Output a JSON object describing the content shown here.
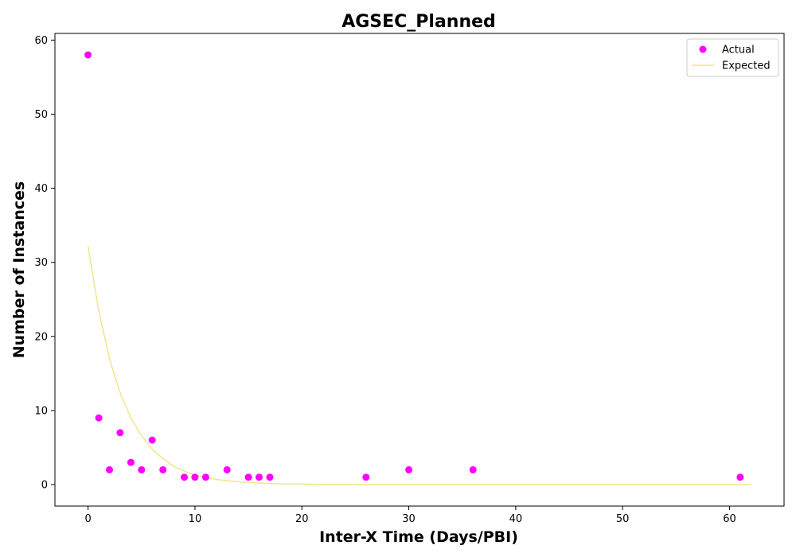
{
  "chart_data": {
    "type": "scatter",
    "title": "AGSEC_Planned",
    "xlabel": "Inter-X Time (Days/PBI)",
    "ylabel": "Number of Instances",
    "xlim": [
      -3.1,
      65.1
    ],
    "ylim": [
      -2.9,
      60.9
    ],
    "xticks": [
      0,
      10,
      20,
      30,
      40,
      50,
      60
    ],
    "yticks": [
      0,
      10,
      20,
      30,
      40,
      50,
      60
    ],
    "grid": false,
    "legend_position": "top-right",
    "series": [
      {
        "name": "Actual",
        "kind": "scatter",
        "color": "#ff00ff",
        "x": [
          0,
          1,
          2,
          3,
          4,
          5,
          6,
          7,
          9,
          10,
          11,
          13,
          15,
          16,
          17,
          26,
          30,
          36,
          61
        ],
        "y": [
          58,
          9,
          2,
          7,
          3,
          2,
          6,
          2,
          1,
          1,
          1,
          2,
          1,
          1,
          1,
          1,
          2,
          2,
          1
        ]
      },
      {
        "name": "Expected",
        "kind": "line",
        "color": "#f0e68c",
        "x": [
          0,
          1,
          2,
          3,
          4,
          5,
          6,
          7,
          8,
          9,
          10,
          11,
          12,
          13,
          14,
          15,
          16,
          17,
          18,
          19,
          20,
          22,
          24,
          26,
          28,
          30,
          35,
          40,
          45,
          50,
          55,
          60,
          62
        ],
        "y": [
          32.2,
          23.4,
          17.0,
          12.4,
          9.0,
          6.6,
          4.8,
          3.5,
          2.5,
          1.8,
          1.3,
          1.0,
          0.7,
          0.5,
          0.4,
          0.3,
          0.2,
          0.15,
          0.1,
          0.08,
          0.06,
          0.03,
          0.02,
          0.01,
          0.005,
          0.003,
          0.0,
          0.0,
          0.0,
          0.0,
          0.0,
          0.0,
          0.0
        ]
      }
    ]
  }
}
